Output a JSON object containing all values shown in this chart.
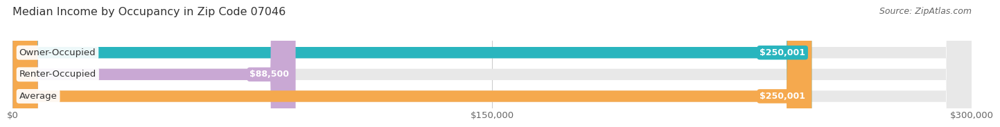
{
  "title": "Median Income by Occupancy in Zip Code 07046",
  "source": "Source: ZipAtlas.com",
  "categories": [
    "Owner-Occupied",
    "Renter-Occupied",
    "Average"
  ],
  "values": [
    250001,
    88500,
    250001
  ],
  "bar_colors": [
    "#29b5be",
    "#c9a8d4",
    "#f5a94e"
  ],
  "bar_bg_color": "#e8e8e8",
  "value_labels": [
    "$250,001",
    "$88,500",
    "$250,001"
  ],
  "xlim": [
    0,
    300000
  ],
  "xticks": [
    0,
    150000,
    300000
  ],
  "xtick_labels": [
    "$0",
    "$150,000",
    "$300,000"
  ],
  "background_color": "#ffffff",
  "bar_height": 0.52,
  "title_fontsize": 11.5,
  "source_fontsize": 9,
  "label_fontsize": 9.5,
  "value_fontsize": 9,
  "tick_fontsize": 9.5,
  "grid_color": "#cccccc"
}
